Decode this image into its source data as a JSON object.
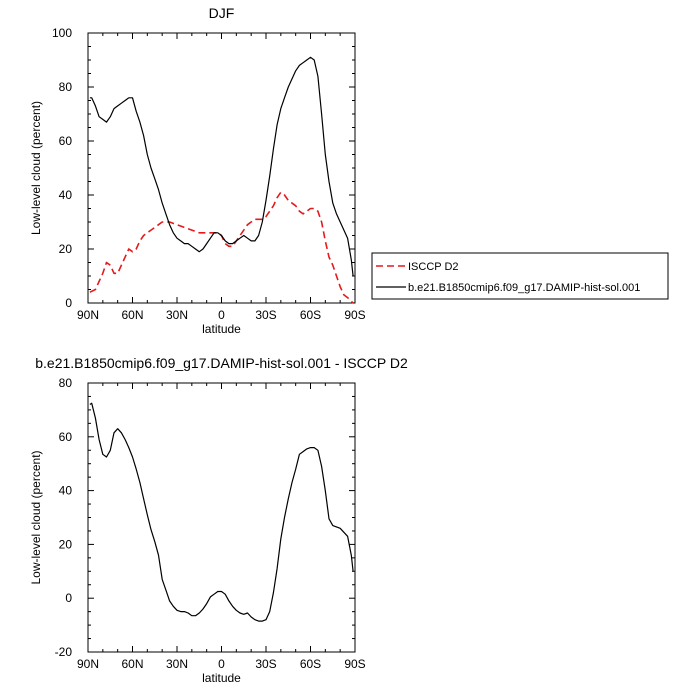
{
  "chart_data": [
    {
      "type": "line",
      "title": "DJF",
      "xlabel": "latitude",
      "ylabel": "Low-level cloud (percent)",
      "xlim": [
        90,
        -90
      ],
      "ylim": [
        0,
        100
      ],
      "x_ticks": [
        90,
        60,
        30,
        0,
        -30,
        -60,
        -90
      ],
      "x_tick_labels": [
        "90N",
        "60N",
        "30N",
        "0",
        "30S",
        "60S",
        "90S"
      ],
      "y_ticks": [
        0,
        20,
        40,
        60,
        80,
        100
      ],
      "y_tick_labels": [
        "0",
        "20",
        "40",
        "60",
        "80",
        "100"
      ],
      "legend": "outside-right",
      "series": [
        {
          "name": "ISCCP D2",
          "color": "#e41a1c",
          "style": "dashed",
          "points": [
            [
              88.75,
              4
            ],
            [
              85,
              5
            ],
            [
              80,
              11
            ],
            [
              77.5,
              15
            ],
            [
              75,
              14
            ],
            [
              72.5,
              11
            ],
            [
              70,
              11
            ],
            [
              67.5,
              14
            ],
            [
              65,
              17
            ],
            [
              62.5,
              20
            ],
            [
              60,
              19
            ],
            [
              57.5,
              20
            ],
            [
              55,
              23
            ],
            [
              52.5,
              25
            ],
            [
              50,
              26
            ],
            [
              47.5,
              27
            ],
            [
              45,
              28
            ],
            [
              42.5,
              29
            ],
            [
              40,
              30
            ],
            [
              35,
              30
            ],
            [
              30,
              29
            ],
            [
              25,
              28
            ],
            [
              20,
              27
            ],
            [
              15,
              26
            ],
            [
              10,
              26
            ],
            [
              5,
              26
            ],
            [
              2.5,
              26
            ],
            [
              0,
              25
            ],
            [
              -2.5,
              22
            ],
            [
              -5,
              21
            ],
            [
              -7.5,
              21
            ],
            [
              -10,
              23
            ],
            [
              -12.5,
              25
            ],
            [
              -15,
              27
            ],
            [
              -17.5,
              29
            ],
            [
              -20,
              30
            ],
            [
              -22.5,
              31
            ],
            [
              -25,
              31
            ],
            [
              -27.5,
              31
            ],
            [
              -30,
              32
            ],
            [
              -32.5,
              34
            ],
            [
              -35,
              36
            ],
            [
              -37.5,
              39
            ],
            [
              -40,
              41
            ],
            [
              -42.5,
              40
            ],
            [
              -45,
              38
            ],
            [
              -50,
              36
            ],
            [
              -52.5,
              34
            ],
            [
              -55,
              33
            ],
            [
              -57.5,
              34
            ],
            [
              -60,
              35
            ],
            [
              -62.5,
              35
            ],
            [
              -65,
              34
            ],
            [
              -67.5,
              30
            ],
            [
              -70,
              23
            ],
            [
              -72.5,
              17
            ],
            [
              -75,
              14
            ],
            [
              -77.5,
              10
            ],
            [
              -80,
              6
            ],
            [
              -82.5,
              3
            ],
            [
              -85,
              2
            ],
            [
              -88.75,
              0
            ]
          ]
        },
        {
          "name": "b.e21.B1850cmip6.f09_g17.DAMIP-hist-sol.001",
          "color": "#000000",
          "style": "solid",
          "points": [
            [
              88.75,
              76
            ],
            [
              87.5,
              76
            ],
            [
              85,
              73
            ],
            [
              82.5,
              69
            ],
            [
              80,
              68
            ],
            [
              77.5,
              67
            ],
            [
              75,
              69
            ],
            [
              72.5,
              72
            ],
            [
              70,
              73
            ],
            [
              67.5,
              74
            ],
            [
              65,
              75
            ],
            [
              62.5,
              76
            ],
            [
              60,
              76
            ],
            [
              57.5,
              71
            ],
            [
              55,
              67
            ],
            [
              52.5,
              62
            ],
            [
              50,
              55
            ],
            [
              47.5,
              50
            ],
            [
              45,
              46
            ],
            [
              42.5,
              42
            ],
            [
              40,
              37
            ],
            [
              37.5,
              33
            ],
            [
              35,
              29
            ],
            [
              32.5,
              26
            ],
            [
              30,
              24
            ],
            [
              27.5,
              23
            ],
            [
              25,
              22
            ],
            [
              22.5,
              22
            ],
            [
              20,
              21
            ],
            [
              17.5,
              20
            ],
            [
              15,
              19
            ],
            [
              12.5,
              20
            ],
            [
              10,
              22
            ],
            [
              7.5,
              24
            ],
            [
              5,
              26
            ],
            [
              2.5,
              26
            ],
            [
              0,
              25
            ],
            [
              -2.5,
              23
            ],
            [
              -5,
              22
            ],
            [
              -7.5,
              22
            ],
            [
              -10,
              23
            ],
            [
              -12.5,
              24
            ],
            [
              -15,
              25
            ],
            [
              -17.5,
              24
            ],
            [
              -20,
              23
            ],
            [
              -22.5,
              23
            ],
            [
              -25,
              25
            ],
            [
              -27.5,
              30
            ],
            [
              -30,
              38
            ],
            [
              -32.5,
              47
            ],
            [
              -35,
              57
            ],
            [
              -37.5,
              66
            ],
            [
              -40,
              72
            ],
            [
              -42.5,
              76
            ],
            [
              -45,
              80
            ],
            [
              -47.5,
              83
            ],
            [
              -50,
              86
            ],
            [
              -52.5,
              88
            ],
            [
              -55,
              89
            ],
            [
              -57.5,
              90
            ],
            [
              -60,
              91
            ],
            [
              -62.5,
              90
            ],
            [
              -65,
              84
            ],
            [
              -67.5,
              70
            ],
            [
              -70,
              55
            ],
            [
              -72.5,
              45
            ],
            [
              -75,
              37
            ],
            [
              -77.5,
              33
            ],
            [
              -80,
              30
            ],
            [
              -82.5,
              27
            ],
            [
              -85,
              24
            ],
            [
              -87.5,
              16
            ],
            [
              -88.75,
              10
            ]
          ]
        }
      ]
    },
    {
      "type": "line",
      "title": "b.e21.B1850cmip6.f09_g17.DAMIP-hist-sol.001 - ISCCP D2",
      "xlabel": "latitude",
      "ylabel": "Low-level cloud (percent)",
      "xlim": [
        90,
        -90
      ],
      "ylim": [
        -20,
        80
      ],
      "x_ticks": [
        90,
        60,
        30,
        0,
        -30,
        -60,
        -90
      ],
      "x_tick_labels": [
        "90N",
        "60N",
        "30N",
        "0",
        "30S",
        "60S",
        "90S"
      ],
      "y_ticks": [
        -20,
        0,
        20,
        40,
        60,
        80
      ],
      "y_tick_labels": [
        "-20",
        "0",
        "20",
        "40",
        "60",
        "80"
      ],
      "series": [
        {
          "color": "#000000",
          "style": "solid",
          "points": [
            [
              88.75,
              72
            ],
            [
              87.5,
              72.5
            ],
            [
              85,
              67
            ],
            [
              82.5,
              59
            ],
            [
              80,
              53.5
            ],
            [
              77.5,
              52.5
            ],
            [
              75,
              55
            ],
            [
              72.5,
              61.5
            ],
            [
              70,
              63
            ],
            [
              67.5,
              61.5
            ],
            [
              65,
              59
            ],
            [
              62.5,
              56
            ],
            [
              60,
              52.5
            ],
            [
              57.5,
              48
            ],
            [
              55,
              43
            ],
            [
              52.5,
              37
            ],
            [
              50,
              31
            ],
            [
              47.5,
              25.5
            ],
            [
              45,
              21
            ],
            [
              42.5,
              16
            ],
            [
              40,
              7
            ],
            [
              37.5,
              3
            ],
            [
              35,
              -1
            ],
            [
              32.5,
              -3
            ],
            [
              30,
              -4.5
            ],
            [
              27.5,
              -5
            ],
            [
              25,
              -5
            ],
            [
              22.5,
              -5.5
            ],
            [
              20,
              -6.5
            ],
            [
              17.5,
              -6.5
            ],
            [
              15,
              -5.5
            ],
            [
              12.5,
              -4
            ],
            [
              10,
              -2
            ],
            [
              7.5,
              0.5
            ],
            [
              5,
              1.5
            ],
            [
              2.5,
              2.5
            ],
            [
              0,
              2.5
            ],
            [
              -2.5,
              1.5
            ],
            [
              -5,
              -1
            ],
            [
              -7.5,
              -3
            ],
            [
              -10,
              -4.5
            ],
            [
              -12.5,
              -5.5
            ],
            [
              -15,
              -6
            ],
            [
              -17.5,
              -5.5
            ],
            [
              -20,
              -7
            ],
            [
              -22.5,
              -8
            ],
            [
              -25,
              -8.5
            ],
            [
              -27.5,
              -8.5
            ],
            [
              -30,
              -8
            ],
            [
              -32.5,
              -5
            ],
            [
              -35,
              2
            ],
            [
              -37.5,
              11
            ],
            [
              -40,
              22
            ],
            [
              -42.5,
              30
            ],
            [
              -45,
              37
            ],
            [
              -47.5,
              43
            ],
            [
              -50,
              48
            ],
            [
              -52.5,
              53.5
            ],
            [
              -55,
              54.5
            ],
            [
              -57.5,
              55.5
            ],
            [
              -60,
              56
            ],
            [
              -62.5,
              56
            ],
            [
              -65,
              55
            ],
            [
              -67.5,
              49
            ],
            [
              -70,
              40
            ],
            [
              -72.5,
              29.5
            ],
            [
              -75,
              27
            ],
            [
              -77.5,
              26.5
            ],
            [
              -80,
              26
            ],
            [
              -82.5,
              24.5
            ],
            [
              -85,
              23
            ],
            [
              -87.5,
              16
            ],
            [
              -88.75,
              10
            ]
          ]
        }
      ]
    }
  ]
}
